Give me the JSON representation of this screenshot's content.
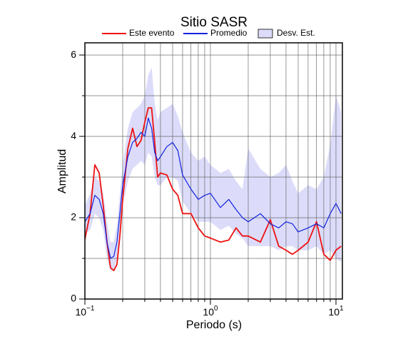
{
  "chart_data": {
    "type": "line",
    "title": "Sitio SASR",
    "xlabel": "Periodo (s)",
    "ylabel": "Amplitud",
    "xscale": "log",
    "grid": true,
    "legend": "top",
    "xlim": [
      0.1,
      11.25
    ],
    "ylim": [
      0,
      6.3
    ],
    "xticks": [
      {
        "value": 0.1,
        "label": "10^-1"
      },
      {
        "value": 1,
        "label": "10^0"
      },
      {
        "value": 10,
        "label": "10^1"
      }
    ],
    "xminorticks": [
      0.2,
      0.3,
      0.4,
      0.5,
      0.6,
      0.7,
      0.8,
      0.9,
      2,
      3,
      4,
      5,
      6,
      7,
      8,
      9
    ],
    "yticks": [
      0,
      2,
      4,
      6
    ],
    "yminorticks": [
      1,
      3,
      5
    ],
    "x": [
      0.1,
      0.11,
      0.12,
      0.13,
      0.14,
      0.15,
      0.16,
      0.17,
      0.18,
      0.19,
      0.2,
      0.22,
      0.24,
      0.26,
      0.28,
      0.3,
      0.32,
      0.34,
      0.36,
      0.38,
      0.4,
      0.45,
      0.5,
      0.55,
      0.6,
      0.7,
      0.8,
      0.9,
      1.0,
      1.2,
      1.4,
      1.6,
      1.8,
      2.0,
      2.5,
      3,
      3.5,
      4,
      4.5,
      5,
      6,
      7,
      8,
      9,
      10,
      11
    ],
    "band": {
      "name": "Desv. Est.",
      "color": "#dcdcfa",
      "upper": [
        2.3,
        2.6,
        3.0,
        2.9,
        2.6,
        1.9,
        1.4,
        1.4,
        1.8,
        2.6,
        3.3,
        4.2,
        4.6,
        4.7,
        4.8,
        5.0,
        5.5,
        5.7,
        4.8,
        4.4,
        4.6,
        4.7,
        4.8,
        4.5,
        4.1,
        3.6,
        3.4,
        3.5,
        3.3,
        3.1,
        3.2,
        2.9,
        2.7,
        3.7,
        3.2,
        3.0,
        3.1,
        3.3,
        2.9,
        2.6,
        2.8,
        2.7,
        3.0,
        3.8,
        5.0,
        4.6
      ],
      "lower": [
        1.6,
        1.7,
        2.1,
        2.0,
        1.7,
        1.0,
        0.7,
        0.7,
        1.0,
        1.6,
        2.3,
        2.9,
        3.2,
        3.3,
        3.4,
        3.3,
        3.6,
        3.5,
        3.0,
        2.8,
        2.8,
        3.0,
        3.0,
        2.9,
        2.4,
        2.1,
        1.9,
        1.9,
        1.9,
        1.7,
        1.8,
        1.6,
        1.5,
        1.3,
        1.3,
        1.3,
        1.2,
        1.3,
        1.3,
        1.2,
        1.2,
        1.3,
        1.1,
        1.2,
        1.0,
        0.9
      ]
    },
    "series": [
      {
        "name": "Este evento",
        "color": "#ee1111",
        "values": [
          1.47,
          2.1,
          3.3,
          3.1,
          2.3,
          1.4,
          0.77,
          0.7,
          0.85,
          1.55,
          2.45,
          3.7,
          4.2,
          3.75,
          3.9,
          4.35,
          4.7,
          4.7,
          3.85,
          3.0,
          3.1,
          3.05,
          2.7,
          2.55,
          2.1,
          2.1,
          1.75,
          1.55,
          1.5,
          1.4,
          1.45,
          1.75,
          1.55,
          1.55,
          1.4,
          1.95,
          1.3,
          1.2,
          1.1,
          1.2,
          1.4,
          1.9,
          1.1,
          0.95,
          1.2,
          1.3
        ]
      },
      {
        "name": "Promedio",
        "color": "#1122dd",
        "values": [
          1.9,
          2.1,
          2.55,
          2.45,
          2.1,
          1.4,
          1.0,
          1.05,
          1.4,
          2.1,
          2.8,
          3.5,
          3.85,
          3.95,
          4.1,
          4.0,
          4.45,
          4.2,
          3.6,
          3.4,
          3.5,
          3.75,
          3.85,
          3.65,
          3.05,
          2.7,
          2.45,
          2.55,
          2.6,
          2.25,
          2.45,
          2.2,
          2.0,
          1.9,
          2.1,
          1.85,
          1.75,
          1.9,
          1.85,
          1.65,
          1.75,
          1.85,
          1.75,
          2.1,
          2.35,
          2.1
        ]
      }
    ]
  }
}
